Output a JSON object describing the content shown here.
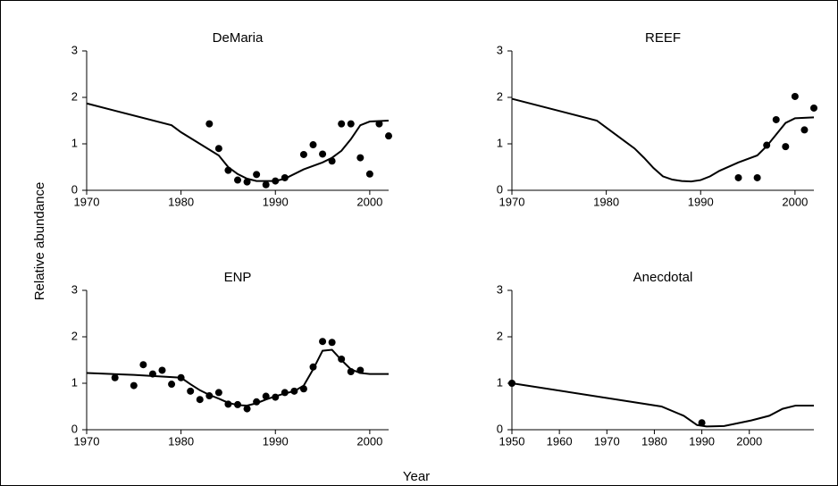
{
  "ylabel": "Relative abundance",
  "xlabel": "Year",
  "chart_data": [
    {
      "type": "line",
      "title": "DeMaria",
      "xlim": [
        1970,
        2002
      ],
      "xticks": [
        1970,
        1980,
        1990,
        2000
      ],
      "ylim": [
        0,
        3
      ],
      "yticks": [
        0,
        1,
        2,
        3
      ],
      "series": [
        {
          "kind": "line",
          "color": "#000000",
          "x": [
            1970,
            1979,
            1980,
            1982,
            1984,
            1985,
            1986,
            1987,
            1988,
            1990,
            1991,
            1993,
            1995,
            1996,
            1997,
            1998,
            1999,
            2000,
            2002
          ],
          "values": [
            1.87,
            1.4,
            1.25,
            1.0,
            0.75,
            0.5,
            0.35,
            0.25,
            0.2,
            0.2,
            0.25,
            0.45,
            0.6,
            0.7,
            0.85,
            1.1,
            1.4,
            1.48,
            1.5
          ]
        },
        {
          "kind": "scatter",
          "color": "#000000",
          "x": [
            1983,
            1984,
            1985,
            1986,
            1987,
            1988,
            1989,
            1990,
            1991,
            1993,
            1994,
            1995,
            1996,
            1997,
            1998,
            1999,
            2000,
            2001,
            2002
          ],
          "values": [
            1.43,
            0.9,
            0.43,
            0.22,
            0.18,
            0.34,
            0.12,
            0.2,
            0.27,
            0.77,
            0.98,
            0.78,
            0.63,
            1.43,
            1.43,
            0.7,
            0.35,
            1.43,
            1.17
          ]
        }
      ]
    },
    {
      "type": "line",
      "title": "REEF",
      "xlim": [
        1970,
        2002
      ],
      "xticks": [
        1970,
        1980,
        1990,
        2000
      ],
      "ylim": [
        0,
        3
      ],
      "yticks": [
        0,
        1,
        2,
        3
      ],
      "series": [
        {
          "kind": "line",
          "color": "#000000",
          "x": [
            1970,
            1979,
            1980,
            1982,
            1983,
            1984,
            1985,
            1986,
            1987,
            1988,
            1989,
            1990,
            1991,
            1992,
            1994,
            1996,
            1997,
            1998,
            1999,
            2000,
            2002
          ],
          "values": [
            1.97,
            1.5,
            1.35,
            1.05,
            0.9,
            0.7,
            0.48,
            0.3,
            0.23,
            0.2,
            0.19,
            0.22,
            0.3,
            0.42,
            0.6,
            0.75,
            0.95,
            1.2,
            1.45,
            1.55,
            1.57
          ]
        },
        {
          "kind": "scatter",
          "color": "#000000",
          "x": [
            1994,
            1996,
            1997,
            1998,
            1999,
            2000,
            2001,
            2002
          ],
          "values": [
            0.27,
            0.27,
            0.97,
            1.52,
            0.94,
            2.02,
            1.3,
            1.77
          ]
        }
      ]
    },
    {
      "type": "line",
      "title": "ENP",
      "xlim": [
        1970,
        2002
      ],
      "xticks": [
        1970,
        1980,
        1990,
        2000
      ],
      "ylim": [
        0,
        3
      ],
      "yticks": [
        0,
        1,
        2,
        3
      ],
      "series": [
        {
          "kind": "line",
          "color": "#000000",
          "x": [
            1970,
            1975,
            1980,
            1981,
            1982,
            1983,
            1984,
            1985,
            1986,
            1987,
            1988,
            1989,
            1990,
            1991,
            1992,
            1993,
            1994,
            1995,
            1996,
            1997,
            1998,
            1999,
            2000,
            2002
          ],
          "values": [
            1.22,
            1.18,
            1.12,
            0.98,
            0.85,
            0.75,
            0.67,
            0.58,
            0.53,
            0.52,
            0.57,
            0.65,
            0.72,
            0.78,
            0.83,
            0.95,
            1.3,
            1.7,
            1.72,
            1.5,
            1.3,
            1.22,
            1.2,
            1.2
          ]
        },
        {
          "kind": "scatter",
          "color": "#000000",
          "x": [
            1973,
            1975,
            1976,
            1977,
            1978,
            1979,
            1980,
            1981,
            1982,
            1983,
            1984,
            1985,
            1986,
            1987,
            1988,
            1989,
            1990,
            1991,
            1992,
            1993,
            1994,
            1995,
            1996,
            1997,
            1998,
            1999
          ],
          "values": [
            1.12,
            0.95,
            1.4,
            1.2,
            1.28,
            0.98,
            1.12,
            0.83,
            0.65,
            0.73,
            0.8,
            0.55,
            0.54,
            0.45,
            0.6,
            0.72,
            0.7,
            0.8,
            0.83,
            0.88,
            1.35,
            1.9,
            1.88,
            1.52,
            1.25,
            1.28
          ]
        }
      ]
    },
    {
      "type": "line",
      "title": "Anecdotal",
      "xlim": [
        1950,
        2013.6
      ],
      "xticks": [
        1950,
        1960,
        1970,
        1980,
        1990,
        2000
      ],
      "ylim": [
        0,
        3
      ],
      "yticks": [
        0,
        1,
        2,
        3
      ],
      "series": [
        {
          "kind": "line",
          "color": "#000000",
          "x": [
            1950,
            1981.5,
            1986.2,
            1989,
            1991,
            1994.7,
            2000.4,
            2004.2,
            2007,
            2009.8,
            2013.6
          ],
          "values": [
            1.0,
            0.5,
            0.3,
            0.1,
            0.07,
            0.08,
            0.2,
            0.3,
            0.45,
            0.52,
            0.52
          ]
        },
        {
          "kind": "scatter",
          "color": "#000000",
          "x": [
            1950,
            1990
          ],
          "values": [
            1.0,
            0.15
          ]
        }
      ]
    }
  ]
}
